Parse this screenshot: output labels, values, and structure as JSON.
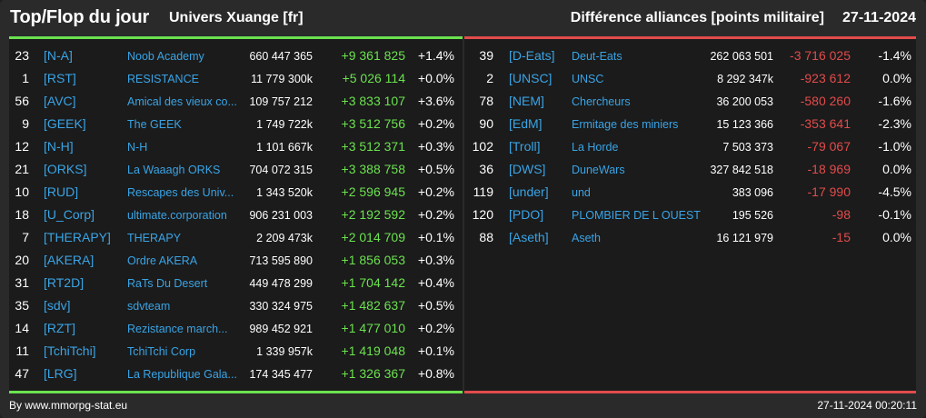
{
  "header": {
    "title": "Top/Flop du jour",
    "universe": "Univers Xuange [fr]",
    "subtitle": "Différence alliances [points militaire]",
    "date": "27-11-2024"
  },
  "top": [
    {
      "rank": "23",
      "tag": "[N-A]",
      "name": "Noob Academy",
      "points": "660 447 365",
      "diff": "+9 361 825",
      "pct": "+1.4%"
    },
    {
      "rank": "1",
      "tag": "[RST]",
      "name": "RESISTANCE",
      "points": "11 779 300k",
      "diff": "+5 026 114",
      "pct": "+0.0%"
    },
    {
      "rank": "56",
      "tag": "[AVC]",
      "name": "Amical des vieux co...",
      "points": "109 757 212",
      "diff": "+3 833 107",
      "pct": "+3.6%"
    },
    {
      "rank": "9",
      "tag": "[GEEK]",
      "name": "The GEEK",
      "points": "1 749 722k",
      "diff": "+3 512 756",
      "pct": "+0.2%"
    },
    {
      "rank": "12",
      "tag": "[N-H]",
      "name": "N-H",
      "points": "1 101 667k",
      "diff": "+3 512 371",
      "pct": "+0.3%"
    },
    {
      "rank": "21",
      "tag": "[ORKS]",
      "name": "La Waaagh ORKS",
      "points": "704 072 315",
      "diff": "+3 388 758",
      "pct": "+0.5%"
    },
    {
      "rank": "10",
      "tag": "[RUD]",
      "name": "Rescapes des Univ...",
      "points": "1 343 520k",
      "diff": "+2 596 945",
      "pct": "+0.2%"
    },
    {
      "rank": "18",
      "tag": "[U_Corp]",
      "name": "ultimate.corporation",
      "points": "906 231 003",
      "diff": "+2 192 592",
      "pct": "+0.2%"
    },
    {
      "rank": "7",
      "tag": "[THERAPY]",
      "name": "THERAPY",
      "points": "2 209 473k",
      "diff": "+2 014 709",
      "pct": "+0.1%"
    },
    {
      "rank": "20",
      "tag": "[AKERA]",
      "name": "Ordre AKERA",
      "points": "713 595 890",
      "diff": "+1 856 053",
      "pct": "+0.3%"
    },
    {
      "rank": "31",
      "tag": "[RT2D]",
      "name": "RaTs Du Desert",
      "points": "449 478 299",
      "diff": "+1 704 142",
      "pct": "+0.4%"
    },
    {
      "rank": "35",
      "tag": "[sdv]",
      "name": "sdvteam",
      "points": "330 324 975",
      "diff": "+1 482 637",
      "pct": "+0.5%"
    },
    {
      "rank": "14",
      "tag": "[RZT]",
      "name": "Rezistance march...",
      "points": "989 452 921",
      "diff": "+1 477 010",
      "pct": "+0.2%"
    },
    {
      "rank": "11",
      "tag": "[TchiTchi]",
      "name": "TchiTchi Corp",
      "points": "1 339 957k",
      "diff": "+1 419 048",
      "pct": "+0.1%"
    },
    {
      "rank": "47",
      "tag": "[LRG]",
      "name": "La Republique Gala...",
      "points": "174 345 477",
      "diff": "+1 326 367",
      "pct": "+0.8%"
    }
  ],
  "flop": [
    {
      "rank": "39",
      "tag": "[D-Eats]",
      "name": "Deut-Eats",
      "points": "262 063 501",
      "diff": "-3 716 025",
      "pct": "-1.4%"
    },
    {
      "rank": "2",
      "tag": "[UNSC]",
      "name": "UNSC",
      "points": "8 292 347k",
      "diff": "-923 612",
      "pct": "0.0%"
    },
    {
      "rank": "78",
      "tag": "[NEM]",
      "name": "Chercheurs",
      "points": "36 200 053",
      "diff": "-580 260",
      "pct": "-1.6%"
    },
    {
      "rank": "90",
      "tag": "[EdM]",
      "name": "Ermitage des miniers",
      "points": "15 123 366",
      "diff": "-353 641",
      "pct": "-2.3%"
    },
    {
      "rank": "102",
      "tag": "[Troll]",
      "name": "La Horde",
      "points": "7 503 373",
      "diff": "-79 067",
      "pct": "-1.0%"
    },
    {
      "rank": "36",
      "tag": "[DWS]",
      "name": "DuneWars",
      "points": "327 842 518",
      "diff": "-18 969",
      "pct": "0.0%"
    },
    {
      "rank": "119",
      "tag": "[under]",
      "name": "und",
      "points": "383 096",
      "diff": "-17 990",
      "pct": "-4.5%"
    },
    {
      "rank": "120",
      "tag": "[PDO]",
      "name": "PLOMBIER DE L OUEST",
      "points": "195 526",
      "diff": "-98",
      "pct": "-0.1%"
    },
    {
      "rank": "88",
      "tag": "[Aseth]",
      "name": "Aseth",
      "points": "16 121 979",
      "diff": "-15",
      "pct": "0.0%"
    }
  ],
  "footer": {
    "source": "By www.mmorpg-stat.eu",
    "timestamp": "27-11-2024 00:20:11"
  },
  "colors": {
    "accent_positive": "#6be24f",
    "accent_negative": "#e24b4b",
    "link": "#39a4e6",
    "background": "#2a2a2a",
    "panel": "#1b1b1b"
  }
}
